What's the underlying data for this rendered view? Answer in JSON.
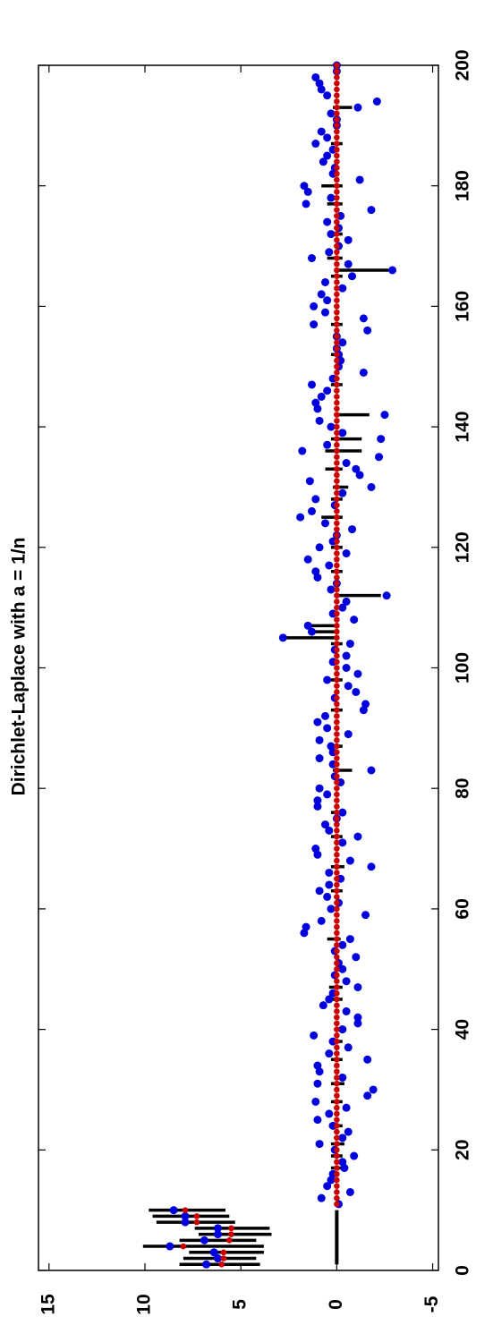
{
  "chart_data": {
    "type": "scatter",
    "title": "Dirichlet-Laplace with a = 1/n",
    "x": [
      1,
      2,
      3,
      4,
      5,
      6,
      7,
      8,
      9,
      10,
      11,
      12,
      13,
      14,
      15,
      16,
      17,
      18,
      19,
      20,
      21,
      22,
      23,
      24,
      25,
      26,
      27,
      28,
      29,
      30,
      31,
      32,
      33,
      34,
      35,
      36,
      37,
      38,
      39,
      40,
      41,
      42,
      43,
      44,
      45,
      46,
      47,
      48,
      49,
      50,
      51,
      52,
      53,
      54,
      55,
      56,
      57,
      58,
      59,
      60,
      61,
      62,
      63,
      64,
      65,
      66,
      67,
      68,
      69,
      70,
      71,
      72,
      73,
      74,
      75,
      76,
      77,
      78,
      79,
      80,
      81,
      82,
      83,
      84,
      85,
      86,
      87,
      88,
      89,
      90,
      91,
      92,
      93,
      94,
      95,
      96,
      97,
      98,
      99,
      100,
      101,
      102,
      103,
      104,
      105,
      106,
      107,
      108,
      109,
      110,
      111,
      112,
      113,
      114,
      115,
      116,
      117,
      118,
      119,
      120,
      121,
      122,
      123,
      124,
      125,
      126,
      127,
      128,
      129,
      130,
      131,
      132,
      133,
      134,
      135,
      136,
      137,
      138,
      139,
      140,
      141,
      142,
      143,
      144,
      145,
      146,
      147,
      148,
      149,
      150,
      151,
      152,
      153,
      154,
      155,
      156,
      157,
      158,
      159,
      160,
      161,
      162,
      163,
      164,
      165,
      166,
      167,
      168,
      169,
      170,
      171,
      172,
      173,
      174,
      175,
      176,
      177,
      178,
      179,
      180,
      181,
      182,
      183,
      184,
      185,
      186,
      187,
      188,
      189,
      190,
      191,
      192,
      193,
      194,
      195,
      196,
      197,
      198,
      199,
      200
    ],
    "series": [
      {
        "color": "#0000dd",
        "values": [
          6.8,
          6.2,
          6.4,
          8.7,
          6.9,
          6.2,
          6.2,
          7.9,
          7.9,
          8.5,
          -0.1,
          0.8,
          -0.7,
          0.5,
          0.3,
          0.2,
          -0.4,
          -0.3,
          -0.9,
          0.1,
          0.9,
          -0.3,
          -0.6,
          0.2,
          1.0,
          0.4,
          -0.5,
          1.1,
          -1.6,
          -1.9,
          1.0,
          -0.3,
          0.9,
          1.0,
          -1.6,
          0.4,
          -0.6,
          0.2,
          1.2,
          -0.3,
          -1.1,
          -1.1,
          -0.5,
          0.7,
          0.4,
          0.2,
          -1.1,
          -0.5,
          0.1,
          -0.3,
          -0.1,
          -1.0,
          0.1,
          -0.3,
          -0.7,
          1.7,
          1.6,
          0.8,
          -1.5,
          0.3,
          -0.1,
          0.5,
          0.9,
          0.4,
          -0.2,
          0.4,
          -1.8,
          -0.7,
          1.0,
          1.1,
          -0.3,
          -1.1,
          0.4,
          0.6,
          0.0,
          -0.3,
          1.0,
          1.0,
          0.5,
          0.9,
          -0.2,
          0.1,
          -1.8,
          0.2,
          0.9,
          0.2,
          0.3,
          0.9,
          -0.6,
          0.5,
          1.0,
          0.6,
          -1.4,
          -1.5,
          0.1,
          -1.0,
          -0.6,
          0.5,
          -1.1,
          -0.5,
          0.2,
          -0.5,
          0.1,
          -0.7,
          2.8,
          1.3,
          1.5,
          -0.9,
          0.2,
          -0.3,
          -0.5,
          -2.6,
          0.3,
          0.0,
          1.0,
          1.1,
          0.4,
          1.5,
          -0.5,
          0.9,
          0.2,
          0.0,
          -0.8,
          0.6,
          1.9,
          1.3,
          0.1,
          1.1,
          -0.3,
          -1.8,
          1.4,
          -1.2,
          -1.0,
          -0.5,
          -2.2,
          1.8,
          0.5,
          -2.3,
          -0.3,
          0.3,
          0.9,
          -2.5,
          1.0,
          1.1,
          0.8,
          0.5,
          1.3,
          0.2,
          -1.4,
          -0.1,
          -0.2,
          -0.1,
          0.0,
          -0.3,
          0.0,
          -1.6,
          1.2,
          -1.4,
          0.6,
          1.2,
          0.5,
          0.8,
          -0.3,
          0.6,
          -0.8,
          -2.9,
          -0.6,
          1.3,
          0.4,
          -0.1,
          -0.6,
          0.3,
          -0.1,
          0.5,
          -0.2,
          -1.8,
          1.6,
          0.3,
          1.5,
          1.7,
          -1.2,
          0.2,
          0.1,
          0.7,
          0.5,
          0.2,
          1.1,
          0.5,
          0.8,
          0.0,
          0.0,
          0.3,
          -1.1,
          -2.1,
          0.5,
          0.8,
          0.9,
          1.1,
          0.0,
          0.0
        ]
      },
      {
        "color": "#cc0000",
        "values": [
          6.0,
          5.9,
          5.9,
          8.0,
          5.6,
          5.5,
          5.5,
          7.3,
          7.3,
          7.9,
          0,
          0,
          0,
          0,
          0,
          0,
          0,
          0,
          0,
          0,
          0,
          0,
          0,
          0,
          0,
          0,
          0,
          0,
          0,
          0,
          0,
          0,
          0,
          0,
          0,
          0,
          0,
          0,
          0,
          0,
          0,
          0,
          0,
          0,
          0,
          0,
          0,
          0,
          0,
          0,
          0,
          0,
          0,
          0,
          0,
          0,
          0,
          0,
          0,
          0,
          0,
          0,
          0,
          0,
          0,
          0,
          0,
          0,
          0,
          0,
          0,
          0,
          0,
          0,
          0,
          0,
          0,
          0,
          0,
          0,
          0,
          0,
          0,
          0,
          0,
          0,
          0,
          0,
          0,
          0,
          0,
          0,
          0,
          0,
          0,
          0,
          0,
          0,
          0,
          0,
          0,
          0,
          0,
          0,
          0,
          0,
          0,
          0,
          0,
          0,
          0,
          0,
          0,
          0,
          0,
          0,
          0,
          0,
          0,
          0,
          0,
          0,
          0,
          0,
          0,
          0,
          0,
          0,
          0,
          0,
          0,
          0,
          0,
          0,
          0,
          0,
          0,
          0,
          0,
          0,
          0,
          0,
          0,
          0,
          0,
          0,
          0,
          0,
          0,
          0,
          0,
          0,
          0,
          0,
          0,
          0,
          0,
          0,
          0,
          0,
          0,
          0,
          0,
          0,
          0,
          0,
          0,
          0,
          0,
          0,
          0,
          0,
          0,
          0,
          0,
          0,
          0,
          0,
          0,
          0,
          0,
          0,
          0,
          0,
          0,
          0,
          0,
          0,
          0,
          0,
          0,
          0,
          0,
          0,
          0,
          0,
          0,
          0,
          0,
          0
        ]
      }
    ],
    "intervals": {
      "color": "#000000",
      "x": [
        1,
        2,
        3,
        4,
        5,
        6,
        7,
        8,
        9,
        10,
        17,
        19,
        21,
        24,
        28,
        31,
        35,
        38,
        45,
        47,
        55,
        63,
        67,
        72,
        76,
        83,
        87,
        93,
        98,
        104,
        105,
        106,
        107,
        112,
        116,
        120,
        125,
        128,
        130,
        133,
        136,
        138,
        142,
        147,
        152,
        157,
        165,
        166,
        168,
        172,
        177,
        180,
        187,
        193
      ],
      "low": [
        4.0,
        4.2,
        3.8,
        3.8,
        4.2,
        3.4,
        3.5,
        5.3,
        5.6,
        5.8,
        -0.3,
        -0.3,
        -0.4,
        -0.3,
        -0.3,
        -0.4,
        -0.3,
        -0.3,
        -0.3,
        -0.3,
        -0.2,
        -0.3,
        -0.4,
        -0.3,
        -0.3,
        -0.8,
        -0.3,
        -0.3,
        -0.3,
        -0.3,
        0,
        0,
        0,
        -2.3,
        -0.3,
        -0.3,
        -0.3,
        -0.3,
        -0.6,
        -0.3,
        -1.3,
        -1.3,
        -1.7,
        -0.3,
        -0.3,
        -0.3,
        -0.3,
        -2.7,
        -0.3,
        -0.3,
        -0.3,
        -0.3,
        -0.3,
        -0.8
      ],
      "high": [
        8.2,
        8.0,
        7.7,
        10.1,
        8.2,
        7.2,
        7.4,
        9.4,
        9.6,
        9.8,
        0.3,
        0.3,
        0.3,
        0.4,
        0.3,
        0.3,
        0.3,
        0.4,
        0.3,
        0.4,
        0.5,
        0.3,
        0.3,
        0.3,
        0.3,
        0.2,
        0.3,
        0.3,
        0.3,
        0.3,
        2.7,
        1.2,
        1.6,
        0,
        0.3,
        0.3,
        0.8,
        0.3,
        0.2,
        0.6,
        0.6,
        0.3,
        0,
        0.3,
        0.3,
        0.3,
        0.3,
        0,
        0.5,
        0.3,
        0.5,
        0.8,
        0.3,
        0.2
      ]
    },
    "baseline": {
      "x": [
        1,
        10
      ],
      "values": [
        0,
        0
      ]
    },
    "xlim": [
      0,
      200
    ],
    "xticks": [
      0,
      20,
      40,
      60,
      80,
      100,
      120,
      140,
      160,
      180,
      200
    ],
    "ylim": [
      -5.3,
      15.55
    ],
    "yticks": [
      15,
      10,
      5,
      0,
      -5
    ]
  }
}
